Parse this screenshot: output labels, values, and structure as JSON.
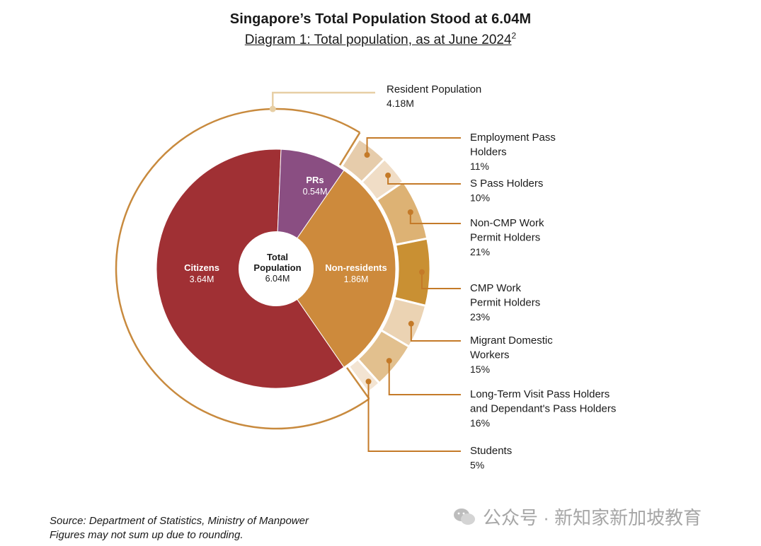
{
  "title": "Singapore’s Total Population Stood at 6.04M",
  "subtitle": "Diagram 1: Total population, as at June 2024",
  "subtitle_note": "2",
  "chart_data": {
    "type": "pie",
    "center": {
      "line1": "Total",
      "line2": "Population",
      "value": "6.04M"
    },
    "inner": [
      {
        "name": "Citizens",
        "value_label": "3.64M",
        "value": 3.64,
        "color": "#a03034"
      },
      {
        "name": "PRs",
        "value_label": "0.54M",
        "value": 0.54,
        "color": "#8a4e82"
      },
      {
        "name": "Non-residents",
        "value_label": "1.86M",
        "value": 1.86,
        "color": "#cd8a3c"
      }
    ],
    "resident_ring": {
      "label": "Resident Population",
      "value": "4.18M",
      "color": "#c88a3e"
    },
    "outer": [
      {
        "lines": [
          "Employment Pass",
          "Holders"
        ],
        "pct": "11%",
        "value": 11,
        "color": "#e6ccab"
      },
      {
        "lines": [
          "S Pass Holders"
        ],
        "pct": "10%",
        "value": 10,
        "color": "#f0ddc6"
      },
      {
        "lines": [
          "Non-CMP Work",
          "Permit Holders"
        ],
        "pct": "21%",
        "value": 21,
        "color": "#ddb274"
      },
      {
        "lines": [
          "CMP Work",
          "Permit Holders"
        ],
        "pct": "23%",
        "value": 23,
        "color": "#c99033"
      },
      {
        "lines": [
          "Migrant Domestic",
          "Workers"
        ],
        "pct": "15%",
        "value": 15,
        "color": "#ebd3b3"
      },
      {
        "lines": [
          "Long-Term Visit Pass Holders",
          "and Dependant's Pass Holders"
        ],
        "pct": "16%",
        "value": 16,
        "color": "#e2c08e"
      },
      {
        "lines": [
          "Students"
        ],
        "pct": "5%",
        "value": 5,
        "color": "#f3e4d2"
      }
    ],
    "leader_color": "#c47a28",
    "resident_leader_color": "#e7cfa5"
  },
  "footer": {
    "source": "Source: Department of Statistics, Ministry of Manpower",
    "note": "Figures may not sum up due to rounding."
  },
  "watermark": "公众号 · 新知家新加坡教育"
}
